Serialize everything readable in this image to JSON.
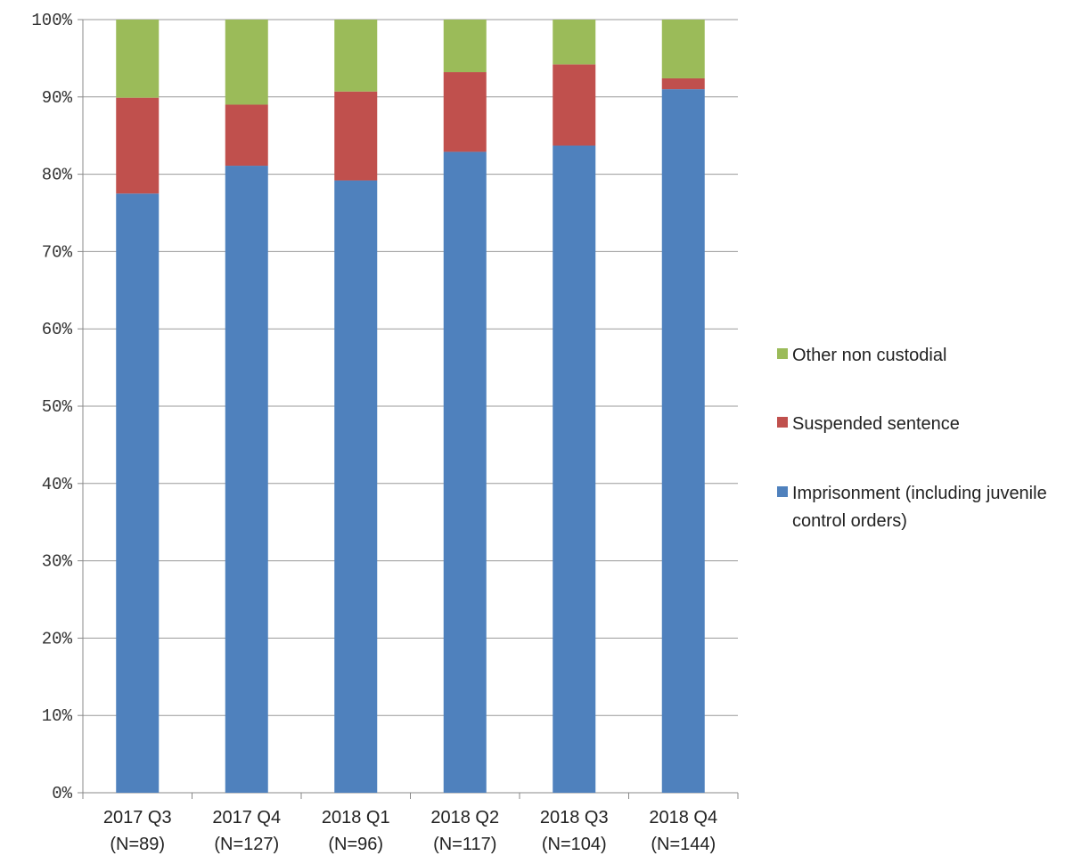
{
  "chart_data": {
    "type": "bar",
    "stacked": true,
    "percent": true,
    "title": "",
    "xlabel": "",
    "ylabel": "",
    "ylim": [
      0,
      100
    ],
    "yticks": [
      "0%",
      "10%",
      "20%",
      "30%",
      "40%",
      "50%",
      "60%",
      "70%",
      "80%",
      "90%",
      "100%"
    ],
    "grid": true,
    "legend_position": "right",
    "categories": [
      [
        "2017 Q3",
        "(N=89)"
      ],
      [
        "2017 Q4",
        "(N=127)"
      ],
      [
        "2018 Q1",
        "(N=96)"
      ],
      [
        "2018 Q2",
        "(N=117)"
      ],
      [
        "2018 Q3",
        "(N=104)"
      ],
      [
        "2018 Q4",
        "(N=144)"
      ]
    ],
    "series": [
      {
        "name": "Imprisonment (including juvenile control orders)",
        "legend_lines": [
          "Imprisonment (including juvenile",
          "control orders)"
        ],
        "color": "#4f81bd",
        "values": [
          77.5,
          81.1,
          79.2,
          82.9,
          83.7,
          91.0
        ]
      },
      {
        "name": "Suspended sentence",
        "legend_lines": [
          "Suspended sentence"
        ],
        "color": "#c0504d",
        "values": [
          12.4,
          7.9,
          11.5,
          10.3,
          10.5,
          1.4
        ]
      },
      {
        "name": "Other non custodial",
        "legend_lines": [
          "Other non custodial"
        ],
        "color": "#9bbb59",
        "values": [
          10.1,
          11.0,
          9.3,
          6.8,
          5.8,
          7.6
        ]
      }
    ]
  }
}
